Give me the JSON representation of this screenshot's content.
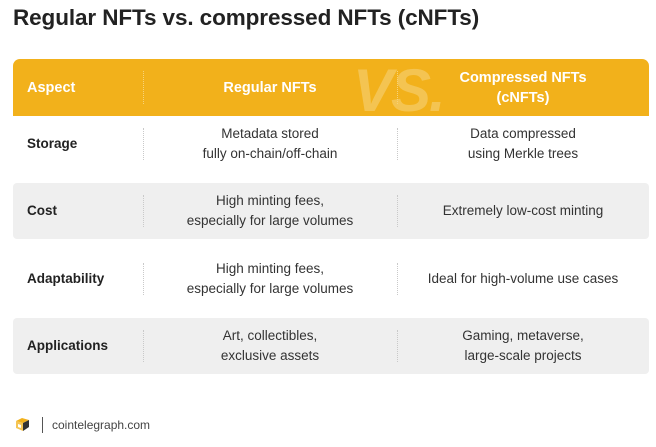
{
  "title": "Regular NFTs vs. compressed NFTs (cNFTs)",
  "header": {
    "aspect": "Aspect",
    "col1": "Regular NFTs",
    "col2": "Compressed NFTs\n(cNFTs)",
    "watermark": "VS."
  },
  "rows": [
    {
      "aspect": "Storage",
      "regular": "Metadata stored\nfully on-chain/off-chain",
      "compressed": "Data compressed\nusing Merkle trees"
    },
    {
      "aspect": "Cost",
      "regular": "High minting fees,\nespecially for large volumes",
      "compressed": "Extremely low-cost minting"
    },
    {
      "aspect": "Adaptability",
      "regular": "High minting fees,\nespecially for large volumes",
      "compressed": "Ideal for high-volume use cases"
    },
    {
      "aspect": "Applications",
      "regular": "Art, collectibles,\nexclusive assets",
      "compressed": "Gaming, metaverse,\nlarge-scale projects"
    }
  ],
  "footer": {
    "logo_icon": "cointelegraph-logo-icon",
    "source": "cointelegraph.com"
  },
  "colors": {
    "header_bg": "#f2b11b",
    "row_shade": "#efefef",
    "header_text": "#ffffff"
  }
}
